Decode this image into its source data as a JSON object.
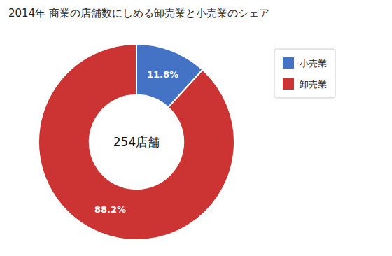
{
  "chart_data": {
    "type": "donut",
    "title": "2014年 商業の店舗数にしめる卸売業と小売業のシェア",
    "categories": [
      "小売業",
      "卸売業"
    ],
    "values": [
      11.8,
      88.2
    ],
    "value_labels": [
      "11.8%",
      "88.2%"
    ],
    "colors": [
      "#4472C4",
      "#CC3333"
    ],
    "annotations": [
      "254店舗"
    ],
    "data_labels": true,
    "legend": "right"
  }
}
